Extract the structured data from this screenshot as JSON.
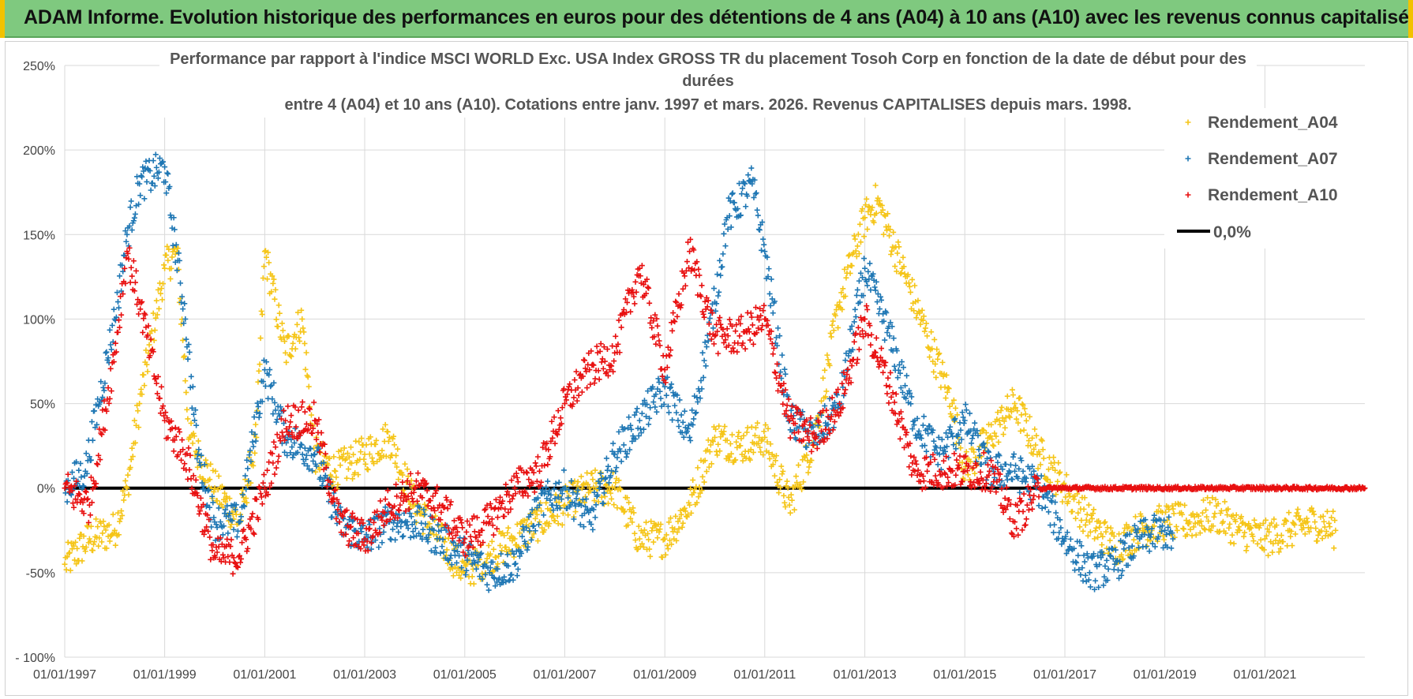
{
  "banner": {
    "title": "ADAM Informe. Evolution historique des performances en euros pour des détentions de 4 ans (A04) à 10 ans (A10) avec les revenus connus capitalisés",
    "background": "#7fc97f",
    "corner_color": "#f2c200"
  },
  "chart_data": {
    "type": "scatter",
    "title_lines": [
      "Performance par rapport à l'indice MSCI WORLD Exc. USA Index GROSS TR  du placement Tosoh Corp en fonction de la date de début pour des",
      "durées",
      "entre 4 (A04) et 10 ans (A10).  Cotations entre janv. 1997 et mars. 2026.  Revenus CAPITALISES depuis mars. 1998."
    ],
    "x_axis": {
      "type": "date",
      "range": [
        "1997-01-01",
        "2023-01-01"
      ],
      "ticks": [
        "01/01/1997",
        "01/01/1999",
        "01/01/2001",
        "01/01/2003",
        "01/01/2005",
        "01/01/2007",
        "01/01/2009",
        "01/01/2011",
        "01/01/2013",
        "01/01/2015",
        "01/01/2017",
        "01/01/2019",
        "01/01/2021"
      ]
    },
    "y_axis": {
      "unit": "%",
      "range": [
        -100,
        250
      ],
      "ticks": [
        -100,
        -50,
        0,
        50,
        100,
        150,
        200,
        250
      ],
      "tick_labels": [
        "- 100%",
        "-50%",
        "0%",
        "50%",
        "100%",
        "150%",
        "200%",
        "250%"
      ]
    },
    "grid": true,
    "legend_position": "top-right",
    "reference_line": {
      "name": "0,0%",
      "value": 0,
      "color": "#000000"
    },
    "series": [
      {
        "name": "Rendement_A04",
        "color": "#f5c518",
        "marker": "+",
        "x": [
          "1997-01-01",
          "1997-07-01",
          "1998-01-01",
          "1998-04-01",
          "1998-07-01",
          "1999-01-01",
          "1999-04-01",
          "1999-07-01",
          "2000-01-01",
          "2000-07-01",
          "2000-11-01",
          "2001-01-01",
          "2001-06-01",
          "2001-10-01",
          "2002-01-01",
          "2002-06-01",
          "2003-01-01",
          "2003-07-01",
          "2004-01-01",
          "2004-07-01",
          "2005-01-01",
          "2005-07-01",
          "2006-01-01",
          "2006-07-01",
          "2007-01-01",
          "2007-07-01",
          "2008-01-01",
          "2008-07-01",
          "2009-01-01",
          "2009-07-01",
          "2010-01-01",
          "2010-07-01",
          "2011-01-01",
          "2011-07-01",
          "2012-01-01",
          "2012-07-01",
          "2013-01-01",
          "2013-04-01",
          "2013-10-01",
          "2014-04-01",
          "2014-10-01",
          "2015-01-01",
          "2015-07-01",
          "2016-01-01",
          "2016-07-01",
          "2017-01-01",
          "2017-07-01",
          "2018-01-01",
          "2018-07-01",
          "2019-01-01",
          "2019-07-01",
          "2020-01-01",
          "2020-07-01",
          "2021-01-01",
          "2021-07-01",
          "2022-01-01",
          "2022-06-01"
        ],
        "y": [
          -45,
          -30,
          -25,
          0,
          50,
          130,
          140,
          30,
          0,
          -20,
          30,
          140,
          80,
          100,
          20,
          10,
          20,
          30,
          -10,
          -30,
          -50,
          -40,
          -30,
          -20,
          -10,
          0,
          0,
          -30,
          -30,
          -10,
          30,
          25,
          30,
          -10,
          30,
          110,
          160,
          170,
          130,
          90,
          50,
          10,
          30,
          50,
          20,
          0,
          -20,
          -35,
          -25,
          -20,
          -20,
          -15,
          -25,
          -30,
          -25,
          -20,
          -25
        ]
      },
      {
        "name": "Rendement_A07",
        "color": "#1f77b4",
        "marker": "+",
        "x": [
          "1997-01-01",
          "1997-06-01",
          "1998-01-01",
          "1998-04-01",
          "1998-07-01",
          "1999-01-01",
          "1999-06-01",
          "1999-09-01",
          "2000-01-01",
          "2000-07-01",
          "2001-01-01",
          "2001-06-01",
          "2002-01-01",
          "2002-07-01",
          "2003-01-01",
          "2003-07-01",
          "2004-01-01",
          "2004-07-01",
          "2005-01-01",
          "2005-07-01",
          "2006-01-01",
          "2006-07-01",
          "2007-01-01",
          "2007-07-01",
          "2008-01-01",
          "2008-07-01",
          "2009-01-01",
          "2009-07-01",
          "2010-01-01",
          "2010-04-01",
          "2010-10-01",
          "2011-01-01",
          "2011-07-01",
          "2012-01-01",
          "2012-07-01",
          "2013-01-01",
          "2013-07-01",
          "2014-01-01",
          "2014-07-01",
          "2015-01-01",
          "2015-07-01",
          "2016-01-01",
          "2016-07-01",
          "2017-01-01",
          "2017-07-01",
          "2018-01-01",
          "2018-07-01",
          "2019-01-01",
          "2019-03-01"
        ],
        "y": [
          0,
          10,
          100,
          150,
          180,
          190,
          100,
          20,
          -20,
          -20,
          70,
          30,
          20,
          -20,
          -30,
          -20,
          -20,
          -30,
          -40,
          -50,
          -45,
          -10,
          0,
          -20,
          20,
          40,
          60,
          30,
          110,
          160,
          180,
          140,
          40,
          30,
          50,
          130,
          90,
          40,
          20,
          40,
          10,
          10,
          0,
          -30,
          -50,
          -45,
          -30,
          -25,
          -30
        ]
      },
      {
        "name": "Rendement_A10",
        "color": "#e81010",
        "marker": "+",
        "x": [
          "1997-01-01",
          "1997-07-01",
          "1998-01-01",
          "1998-04-01",
          "1998-07-01",
          "1999-01-01",
          "1999-06-01",
          "2000-01-01",
          "2000-07-01",
          "2001-01-01",
          "2001-06-01",
          "2002-01-01",
          "2002-07-01",
          "2003-01-01",
          "2003-07-01",
          "2004-01-01",
          "2004-07-01",
          "2005-01-01",
          "2005-07-01",
          "2006-01-01",
          "2006-07-01",
          "2007-01-01",
          "2007-07-01",
          "2008-01-01",
          "2008-07-01",
          "2009-01-01",
          "2009-07-01",
          "2010-01-01",
          "2010-07-01",
          "2011-01-01",
          "2011-07-01",
          "2012-01-01",
          "2012-07-01",
          "2013-01-01",
          "2013-07-01",
          "2014-01-01",
          "2014-07-01",
          "2015-01-01",
          "2015-07-01",
          "2016-01-01",
          "2016-04-01",
          "2016-07-01",
          "2017-01-01",
          "2018-01-01",
          "2019-01-01",
          "2020-01-01",
          "2021-01-01",
          "2022-01-01",
          "2023-01-01"
        ],
        "y": [
          0,
          -10,
          80,
          140,
          110,
          40,
          20,
          -40,
          -40,
          0,
          40,
          40,
          -20,
          -30,
          -10,
          0,
          -10,
          -30,
          -20,
          0,
          10,
          50,
          70,
          80,
          130,
          70,
          140,
          90,
          90,
          100,
          40,
          30,
          50,
          100,
          60,
          10,
          10,
          10,
          10,
          -20,
          -10,
          0,
          0,
          0,
          0,
          0,
          0,
          0,
          0
        ]
      }
    ]
  }
}
